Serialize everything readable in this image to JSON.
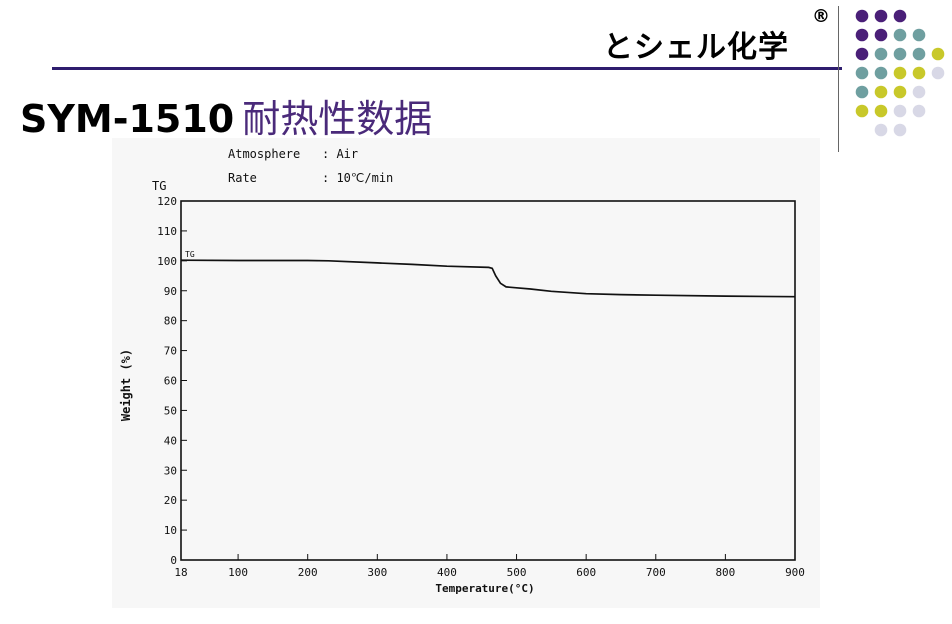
{
  "header": {
    "brand": "とシェル化学",
    "registered_mark": "®",
    "title_code": "SYM-1510",
    "title_text": "耐热性数据"
  },
  "colors": {
    "purple": "#4a1f78",
    "teal": "#6f9fa0",
    "yellow": "#c8c82a",
    "lavender": "#d8d8e6",
    "rule": "#2e1d6e"
  },
  "dot_grid": [
    [
      "purple",
      "purple",
      "purple",
      null,
      null
    ],
    [
      "purple",
      "purple",
      "teal",
      "teal",
      null
    ],
    [
      "purple",
      "teal",
      "teal",
      "teal",
      "yellow"
    ],
    [
      "teal",
      "teal",
      "yellow",
      "yellow",
      "lavender"
    ],
    [
      "teal",
      "yellow",
      "yellow",
      "lavender",
      null
    ],
    [
      "yellow",
      "yellow",
      "lavender",
      "lavender",
      null
    ],
    [
      null,
      "lavender",
      "lavender",
      null,
      null
    ]
  ],
  "meta": {
    "atmosphere_label": "Atmosphere",
    "atmosphere_value": ": Air",
    "rate_label": "Rate",
    "rate_value": ": 10℃/min"
  },
  "chart_data": {
    "type": "line",
    "title": "",
    "ylabel_top": "TG",
    "ylabel": "Weight (%)",
    "xlabel": "Temperature(°C)",
    "xlim": [
      18,
      900
    ],
    "ylim": [
      0,
      120
    ],
    "x_ticks": [
      18,
      100,
      200,
      300,
      400,
      500,
      600,
      700,
      800,
      900
    ],
    "y_ticks": [
      0,
      10,
      20,
      30,
      40,
      50,
      60,
      70,
      80,
      90,
      100,
      110,
      120
    ],
    "grid": false,
    "series": [
      {
        "name": "TG",
        "points": [
          [
            18,
            100.2
          ],
          [
            100,
            100.1
          ],
          [
            200,
            100.1
          ],
          [
            230,
            100.0
          ],
          [
            300,
            99.3
          ],
          [
            350,
            98.8
          ],
          [
            400,
            98.2
          ],
          [
            460,
            97.8
          ],
          [
            465,
            97.5
          ],
          [
            470,
            95.0
          ],
          [
            477,
            92.5
          ],
          [
            485,
            91.3
          ],
          [
            500,
            91.0
          ],
          [
            520,
            90.6
          ],
          [
            550,
            89.8
          ],
          [
            600,
            89.0
          ],
          [
            650,
            88.7
          ],
          [
            700,
            88.5
          ],
          [
            800,
            88.2
          ],
          [
            900,
            88.0
          ]
        ]
      }
    ]
  }
}
